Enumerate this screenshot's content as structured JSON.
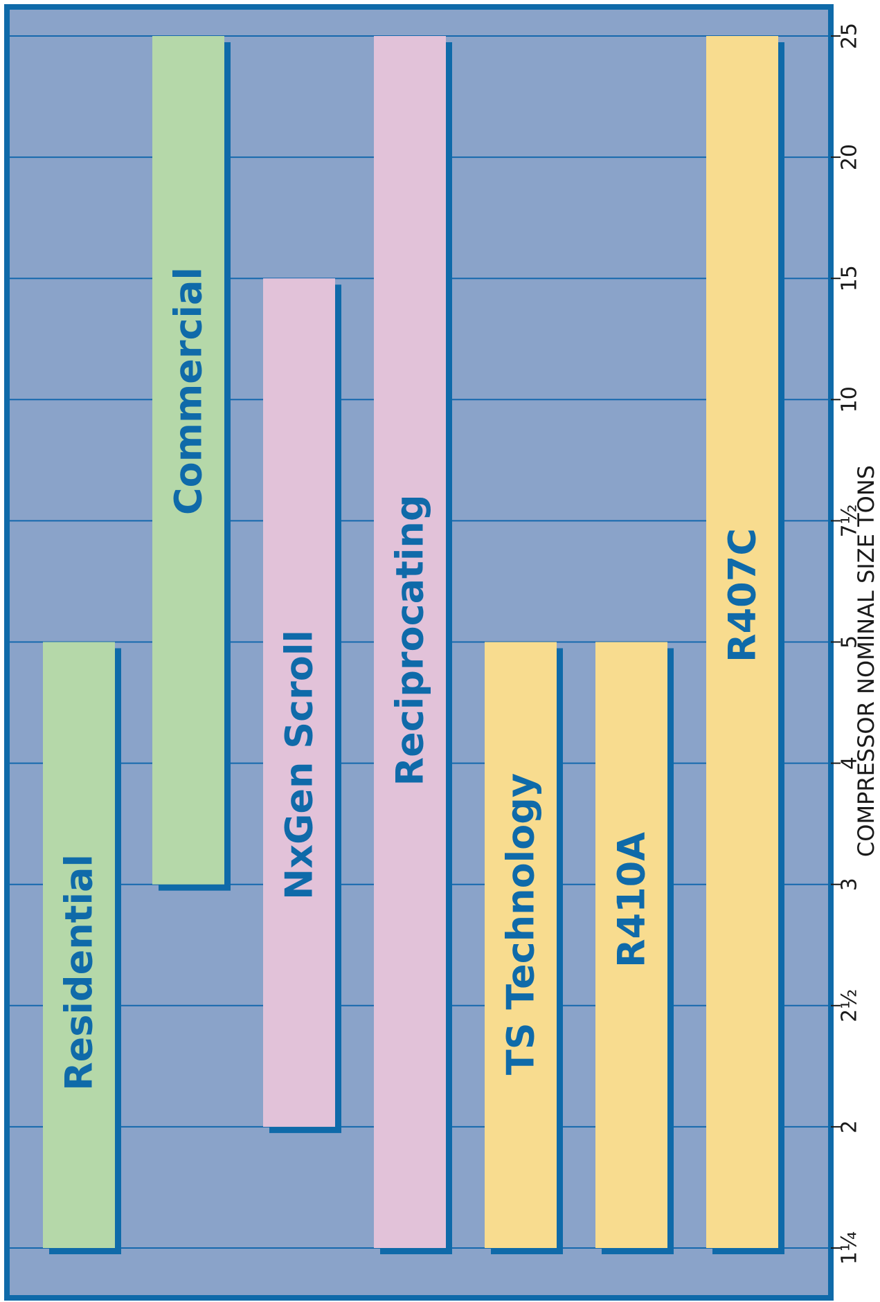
{
  "chart_data": {
    "type": "bar",
    "orientation": "horizontal",
    "xlabel": "COMPRESSOR NOMINAL SIZE TONS",
    "ticks": [
      "1¼",
      "2",
      "2½",
      "3",
      "4",
      "5",
      "7½",
      "10",
      "15",
      "20",
      "25"
    ],
    "categories": [
      "Residential",
      "Commercial",
      "NxGen Scroll",
      "Reciprocating",
      "TS Technology",
      "R410A",
      "R407C"
    ],
    "ranges": [
      {
        "label": "Residential",
        "start": "1¼",
        "end": "5",
        "color": "#b5d8a9"
      },
      {
        "label": "Commercial",
        "start": "3",
        "end": "25",
        "color": "#b5d8a9"
      },
      {
        "label": "NxGen Scroll",
        "start": "2",
        "end": "15",
        "color": "#e2c2d9"
      },
      {
        "label": "Reciprocating",
        "start": "1¼",
        "end": "25",
        "color": "#e2c2d9"
      },
      {
        "label": "TS Technology",
        "start": "1¼",
        "end": "5",
        "color": "#f8dc8f"
      },
      {
        "label": "R410A",
        "start": "1¼",
        "end": "5",
        "color": "#f8dc8f"
      },
      {
        "label": "R407C",
        "start": "1¼",
        "end": "25",
        "color": "#f8dc8f"
      }
    ],
    "grid": true,
    "colors": {
      "background": "#8aa3c9",
      "gridline": "#1568ad",
      "frame": "#0f6aa9",
      "shadow": "#0f6aa9",
      "label": "#0f6aa9"
    }
  }
}
